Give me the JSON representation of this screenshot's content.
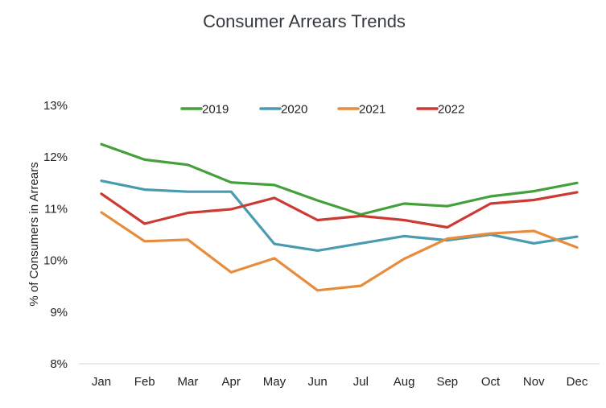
{
  "chart_data": {
    "type": "line",
    "title": "Consumer Arrears Trends",
    "xlabel": "",
    "ylabel": "% of Consumers in Arrears",
    "categories": [
      "Jan",
      "Feb",
      "Mar",
      "Apr",
      "May",
      "Jun",
      "Jul",
      "Aug",
      "Sep",
      "Oct",
      "Nov",
      "Dec"
    ],
    "ylim": [
      8,
      13
    ],
    "yticks": [
      8,
      9,
      10,
      11,
      12,
      13
    ],
    "ytick_labels": [
      "8%",
      "9%",
      "10%",
      "11%",
      "12%",
      "13%"
    ],
    "grid": false,
    "legend_position": "top-center",
    "series": [
      {
        "name": "2019",
        "color": "#43a03a",
        "values": [
          12.25,
          11.95,
          11.85,
          11.51,
          11.46,
          11.16,
          10.89,
          11.1,
          11.05,
          11.24,
          11.34,
          11.5
        ]
      },
      {
        "name": "2020",
        "color": "#4a9bb0",
        "values": [
          11.54,
          11.37,
          11.33,
          11.33,
          10.32,
          10.19,
          10.33,
          10.47,
          10.39,
          10.5,
          10.33,
          10.46
        ]
      },
      {
        "name": "2021",
        "color": "#e88c3c",
        "values": [
          10.93,
          10.37,
          10.4,
          9.77,
          10.04,
          9.42,
          9.51,
          10.03,
          10.42,
          10.52,
          10.57,
          10.25
        ]
      },
      {
        "name": "2022",
        "color": "#cc3a33",
        "values": [
          11.29,
          10.71,
          10.92,
          10.99,
          11.21,
          10.78,
          10.86,
          10.78,
          10.64,
          11.1,
          11.17,
          11.32
        ]
      }
    ]
  }
}
